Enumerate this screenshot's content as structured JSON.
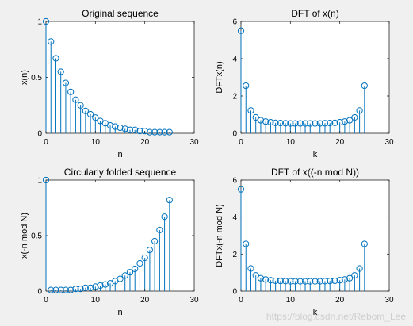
{
  "watermark": "https://blog.csdn.net/Rebom_Lee",
  "colors": {
    "figure_bg": "#f0f0f0",
    "axes_bg": "#ffffff",
    "stem": "#0072bd",
    "axis": "#262626"
  },
  "chart_data": [
    {
      "type": "stem",
      "title": "Original sequence",
      "xlabel": "n",
      "ylabel": "x(n)",
      "xlim": [
        0,
        30
      ],
      "ylim": [
        0,
        1
      ],
      "xticks": [
        0,
        10,
        20,
        30
      ],
      "yticks": [
        0,
        0.5,
        1
      ],
      "grid": false,
      "x": [
        0,
        1,
        2,
        3,
        4,
        5,
        6,
        7,
        8,
        9,
        10,
        11,
        12,
        13,
        14,
        15,
        16,
        17,
        18,
        19,
        20,
        21,
        22,
        23,
        24,
        25
      ],
      "y": [
        1.0,
        0.82,
        0.67,
        0.55,
        0.45,
        0.37,
        0.3,
        0.25,
        0.2,
        0.17,
        0.14,
        0.11,
        0.09,
        0.07,
        0.06,
        0.05,
        0.04,
        0.03,
        0.03,
        0.02,
        0.02,
        0.01,
        0.01,
        0.01,
        0.01,
        0.01
      ]
    },
    {
      "type": "stem",
      "title": "DFT of x(n)",
      "xlabel": "k",
      "ylabel": "DFTx(n)",
      "xlim": [
        0,
        30
      ],
      "ylim": [
        0,
        6
      ],
      "xticks": [
        0,
        10,
        20,
        30
      ],
      "yticks": [
        0,
        2,
        4,
        6
      ],
      "grid": false,
      "x": [
        0,
        1,
        2,
        3,
        4,
        5,
        6,
        7,
        8,
        9,
        10,
        11,
        12,
        13,
        14,
        15,
        16,
        17,
        18,
        19,
        20,
        21,
        22,
        23,
        24,
        25
      ],
      "y": [
        5.5,
        2.55,
        1.22,
        0.85,
        0.7,
        0.63,
        0.59,
        0.56,
        0.55,
        0.54,
        0.53,
        0.53,
        0.53,
        0.53,
        0.53,
        0.53,
        0.53,
        0.54,
        0.55,
        0.56,
        0.59,
        0.63,
        0.7,
        0.85,
        1.22,
        2.55
      ]
    },
    {
      "type": "stem",
      "title": "Circularly folded sequence",
      "xlabel": "n",
      "ylabel": "x(-n mod N)",
      "xlim": [
        0,
        30
      ],
      "ylim": [
        0,
        1
      ],
      "xticks": [
        0,
        10,
        20,
        30
      ],
      "yticks": [
        0,
        0.5,
        1
      ],
      "grid": false,
      "x": [
        0,
        1,
        2,
        3,
        4,
        5,
        6,
        7,
        8,
        9,
        10,
        11,
        12,
        13,
        14,
        15,
        16,
        17,
        18,
        19,
        20,
        21,
        22,
        23,
        24,
        25
      ],
      "y": [
        1.0,
        0.01,
        0.01,
        0.01,
        0.01,
        0.01,
        0.02,
        0.02,
        0.03,
        0.03,
        0.04,
        0.05,
        0.06,
        0.07,
        0.09,
        0.11,
        0.14,
        0.17,
        0.2,
        0.25,
        0.3,
        0.37,
        0.45,
        0.55,
        0.67,
        0.82
      ]
    },
    {
      "type": "stem",
      "title": "DFT of x((-n mod N))",
      "xlabel": "k",
      "ylabel": "DFTx(-n mod N)",
      "xlim": [
        0,
        30
      ],
      "ylim": [
        0,
        6
      ],
      "xticks": [
        0,
        10,
        20,
        30
      ],
      "yticks": [
        0,
        2,
        4,
        6
      ],
      "grid": false,
      "x": [
        0,
        1,
        2,
        3,
        4,
        5,
        6,
        7,
        8,
        9,
        10,
        11,
        12,
        13,
        14,
        15,
        16,
        17,
        18,
        19,
        20,
        21,
        22,
        23,
        24,
        25
      ],
      "y": [
        5.5,
        2.55,
        1.22,
        0.85,
        0.7,
        0.63,
        0.59,
        0.56,
        0.55,
        0.54,
        0.53,
        0.53,
        0.53,
        0.53,
        0.53,
        0.53,
        0.53,
        0.54,
        0.55,
        0.56,
        0.59,
        0.63,
        0.7,
        0.85,
        1.22,
        2.55
      ]
    }
  ]
}
